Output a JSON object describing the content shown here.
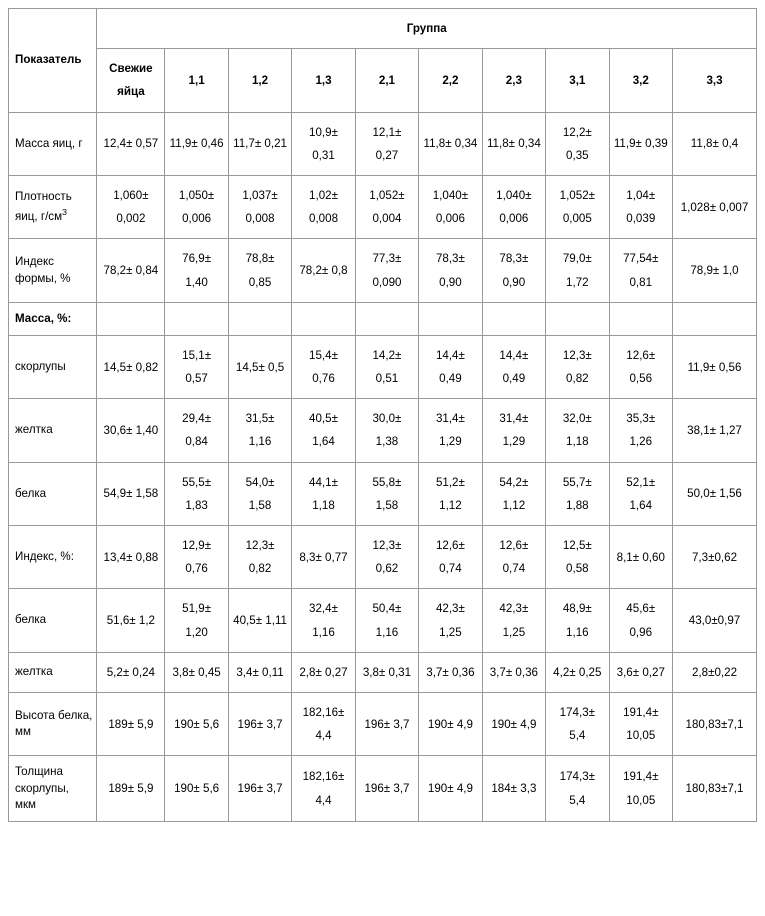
{
  "table": {
    "header": {
      "indicator": "Показатель",
      "group": "Группа",
      "columns": [
        "Свежие яйца",
        "1,1",
        "1,2",
        "1,3",
        "2,1",
        "2,2",
        "2,3",
        "3,1",
        "3,2",
        "3,3"
      ]
    },
    "rows": [
      {
        "label": "Масса яиц, г",
        "bold": false,
        "html": false,
        "cells": [
          "12,4± 0,57",
          "11,9± 0,46",
          "11,7± 0,21",
          "10,9± 0,31",
          "12,1± 0,27",
          "11,8± 0,34",
          "11,8± 0,34",
          "12,2± 0,35",
          "11,9± 0,39",
          "11,8± 0,4"
        ]
      },
      {
        "label": "Плотность яиц, г/см<sup>3</sup>",
        "bold": false,
        "html": true,
        "cells": [
          "1,060± 0,002",
          "1,050± 0,006",
          "1,037± 0,008",
          "1,02± 0,008",
          "1,052± 0,004",
          "1,040± 0,006",
          "1,040± 0,006",
          "1,052± 0,005",
          "1,04± 0,039",
          "1,028± 0,007"
        ]
      },
      {
        "label": "Индекс формы, %",
        "bold": false,
        "html": false,
        "cells": [
          "78,2± 0,84",
          "76,9± 1,40",
          "78,8± 0,85",
          "78,2± 0,8",
          "77,3± 0,090",
          "78,3± 0,90",
          "78,3± 0,90",
          "79,0± 1,72",
          "77,54± 0,81",
          "78,9± 1,0"
        ]
      },
      {
        "label": "Масса, %:",
        "bold": true,
        "html": false,
        "cells": [
          "",
          "",
          "",
          "",
          "",
          "",
          "",
          "",
          "",
          ""
        ]
      },
      {
        "label": "скорлупы",
        "bold": false,
        "html": false,
        "cells": [
          "14,5± 0,82",
          "15,1± 0,57",
          "14,5± 0,5",
          "15,4± 0,76",
          "14,2± 0,51",
          "14,4± 0,49",
          "14,4± 0,49",
          "12,3± 0,82",
          "12,6± 0,56",
          "11,9± 0,56"
        ]
      },
      {
        "label": "желтка",
        "bold": false,
        "html": false,
        "cells": [
          "30,6± 1,40",
          "29,4± 0,84",
          "31,5± 1,16",
          "40,5± 1,64",
          "30,0± 1,38",
          "31,4± 1,29",
          "31,4± 1,29",
          "32,0± 1,18",
          "35,3± 1,26",
          "38,1± 1,27"
        ]
      },
      {
        "label": "белка",
        "bold": false,
        "html": false,
        "cells": [
          "54,9± 1,58",
          "55,5± 1,83",
          "54,0± 1,58",
          "44,1± 1,18",
          "55,8± 1,58",
          "51,2± 1,12",
          "54,2± 1,12",
          "55,7± 1,88",
          "52,1± 1,64",
          "50,0± 1,56"
        ]
      },
      {
        "label": "Индекс, %:",
        "bold": false,
        "html": false,
        "cells": [
          "13,4± 0,88",
          "12,9± 0,76",
          "12,3± 0,82",
          "8,3± 0,77",
          "12,3± 0,62",
          "12,6± 0,74",
          "12,6± 0,74",
          "12,5± 0,58",
          "8,1± 0,60",
          "7,3±0,62"
        ]
      },
      {
        "label": "белка",
        "bold": false,
        "html": false,
        "cells": [
          "51,6± 1,2",
          "51,9± 1,20",
          "40,5± 1,11",
          "32,4± 1,16",
          "50,4± 1,16",
          "42,3± 1,25",
          "42,3± 1,25",
          "48,9± 1,16",
          "45,6± 0,96",
          "43,0±0,97"
        ]
      },
      {
        "label": "желтка",
        "bold": false,
        "html": false,
        "cells": [
          "5,2± 0,24",
          "3,8± 0,45",
          "3,4± 0,11",
          "2,8± 0,27",
          "3,8± 0,31",
          "3,7± 0,36",
          "3,7± 0,36",
          "4,2± 0,25",
          "3,6± 0,27",
          "2,8±0,22"
        ]
      },
      {
        "label": "Высота белка, мм",
        "bold": false,
        "html": false,
        "cells": [
          "189± 5,9",
          "190± 5,6",
          "196± 3,7",
          "182,16± 4,4",
          "196± 3,7",
          "190± 4,9",
          "190± 4,9",
          "174,3± 5,4",
          "191,4± 10,05",
          "180,83±7,1"
        ]
      },
      {
        "label": "Толщина скорлупы, мкм",
        "bold": false,
        "html": false,
        "cells": [
          "189± 5,9",
          "190± 5,6",
          "196± 3,7",
          "182,16± 4,4",
          "196± 3,7",
          "190± 4,9",
          "184± 3,3",
          "174,3± 5,4",
          "191,4± 10,05",
          "180,83±7,1"
        ]
      }
    ]
  }
}
